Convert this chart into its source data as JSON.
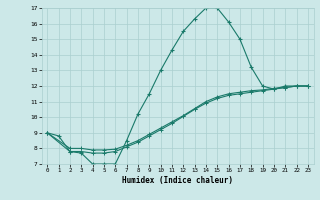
{
  "title": "",
  "xlabel": "Humidex (Indice chaleur)",
  "bg_color": "#cce8e8",
  "line_color": "#1a7a6a",
  "grid_color": "#aacfcf",
  "xlim": [
    -0.5,
    23.5
  ],
  "ylim": [
    7,
    17
  ],
  "yticks": [
    7,
    8,
    9,
    10,
    11,
    12,
    13,
    14,
    15,
    16,
    17
  ],
  "xticks": [
    0,
    1,
    2,
    3,
    4,
    5,
    6,
    7,
    8,
    9,
    10,
    11,
    12,
    13,
    14,
    15,
    16,
    17,
    18,
    19,
    20,
    21,
    22,
    23
  ],
  "line1_x": [
    0,
    1,
    2,
    3,
    4,
    5,
    6,
    7,
    8,
    9,
    10,
    11,
    12,
    13,
    14,
    15,
    16,
    17,
    18,
    19,
    20,
    21,
    22,
    23
  ],
  "line1_y": [
    9.0,
    8.8,
    7.8,
    7.7,
    7.0,
    7.0,
    7.0,
    8.5,
    10.2,
    11.5,
    13.0,
    14.3,
    15.5,
    16.3,
    17.0,
    17.0,
    16.1,
    15.0,
    13.2,
    12.0,
    11.8,
    12.0,
    12.0,
    12.0
  ],
  "line2_x": [
    0,
    2,
    3,
    4,
    5,
    6,
    7,
    8,
    9,
    10,
    11,
    12,
    13,
    14,
    15,
    16,
    17,
    18,
    19,
    20,
    21,
    22,
    23
  ],
  "line2_y": [
    9.0,
    8.0,
    8.0,
    7.9,
    7.9,
    7.95,
    8.2,
    8.5,
    8.9,
    9.3,
    9.7,
    10.1,
    10.55,
    11.0,
    11.3,
    11.5,
    11.6,
    11.7,
    11.75,
    11.85,
    11.9,
    12.0,
    12.0
  ],
  "line3_x": [
    0,
    2,
    3,
    4,
    5,
    6,
    7,
    8,
    9,
    10,
    11,
    12,
    13,
    14,
    15,
    16,
    17,
    18,
    19,
    20,
    21,
    22,
    23
  ],
  "line3_y": [
    9.0,
    7.8,
    7.8,
    7.7,
    7.7,
    7.8,
    8.1,
    8.4,
    8.8,
    9.2,
    9.6,
    10.05,
    10.5,
    10.9,
    11.2,
    11.4,
    11.5,
    11.6,
    11.7,
    11.8,
    11.9,
    12.0,
    12.0
  ]
}
